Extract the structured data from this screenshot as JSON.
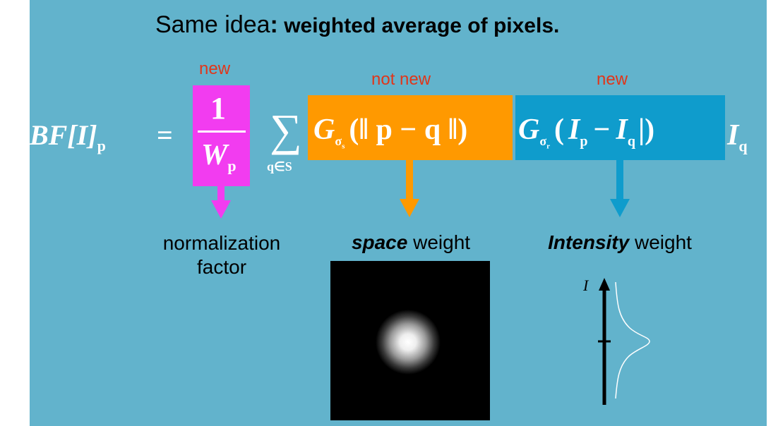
{
  "title": {
    "prefix": "Same idea",
    "colon": ":",
    "bold": " weighted average of pixels."
  },
  "labels": {
    "new_left": "new",
    "not_new": "not new",
    "new_right": "new"
  },
  "formula": {
    "lhs": "BF[I]",
    "lhs_sub": "p",
    "equals": "=",
    "numerator": "1",
    "denominator": "W",
    "denominator_sub": "p",
    "sum_symbol": "∑",
    "sum_sub": "q∈S",
    "space_term": "G",
    "space_sigma": "σ",
    "space_sigma_sub": "s",
    "space_arg": "(‖ p − q ‖)",
    "range_term": "G",
    "range_sigma": "σ",
    "range_sigma_sub": "r",
    "range_arg_open": "(",
    "range_I1": "I",
    "range_I1_sub": "p",
    "range_minus": "−",
    "range_I2": "I",
    "range_I2_sub": "q",
    "range_arg_close": "|)",
    "tail": "I",
    "tail_sub": "q"
  },
  "captions": {
    "normalization_line1": "normalization",
    "normalization_line2": "factor",
    "space_emph": "space",
    "space_rest": " weight",
    "intensity_emph": "Intensity",
    "intensity_rest": " weight"
  },
  "plot": {
    "axis_label": "I"
  },
  "colors": {
    "background": "#62b3cc",
    "magenta": "#f23cf0",
    "orange": "#ff9900",
    "blue": "#0f9ccc",
    "label_red": "#e0361a"
  }
}
